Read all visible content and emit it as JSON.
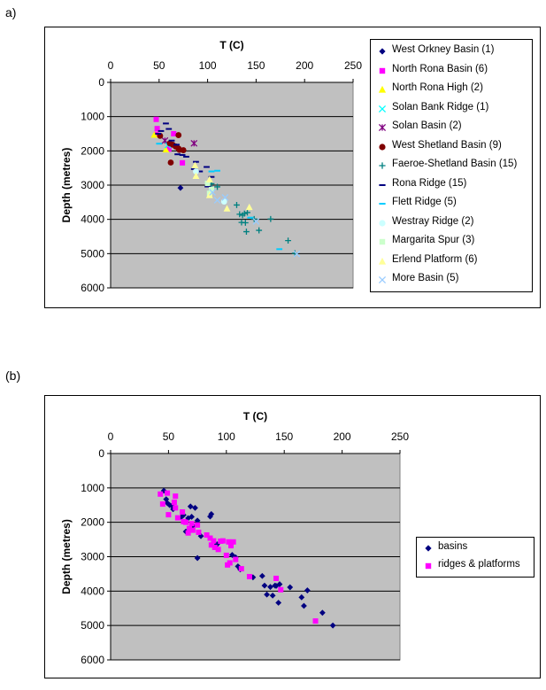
{
  "panels": {
    "a_label": "a)",
    "b_label": "(b)"
  },
  "chart_data": [
    {
      "type": "scatter",
      "panel": "a)",
      "xlabel": "T (C)",
      "ylabel": "Depth (metres)",
      "xlim": [
        0,
        250
      ],
      "ylim": [
        0,
        6000
      ],
      "x_ticks": [
        "0",
        "50",
        "100",
        "150",
        "200",
        "250"
      ],
      "y_ticks": [
        "0",
        "1000",
        "2000",
        "3000",
        "4000",
        "5000",
        "6000"
      ],
      "y_inverted": true,
      "x_axis_position": "top",
      "grid": "horizontal",
      "legend_position": "right",
      "plot_background": "#c0c0c0",
      "series": [
        {
          "name": "West Orkney Basin (1)",
          "color": "#000080",
          "marker": "diamond",
          "points": [
            [
              72,
              3080
            ]
          ]
        },
        {
          "name": "North Rona Basin (6)",
          "color": "#ff00ff",
          "marker": "square",
          "points": [
            [
              47,
              1080
            ],
            [
              48,
              1350
            ],
            [
              47,
              1520
            ],
            [
              65,
              1500
            ],
            [
              60,
              1950
            ],
            [
              74,
              2350
            ]
          ]
        },
        {
          "name": "North Rona High (2)",
          "color": "#ffff00",
          "marker": "triangle",
          "points": [
            [
              45,
              1530
            ],
            [
              57,
              1960
            ]
          ]
        },
        {
          "name": "Solan Bank Ridge (1)",
          "color": "#00ffff",
          "marker": "x",
          "points": [
            [
              59,
              1830
            ]
          ]
        },
        {
          "name": "Solan Basin (2)",
          "color": "#800080",
          "marker": "star",
          "points": [
            [
              86,
              1780
            ],
            [
              56,
              1700
            ]
          ]
        },
        {
          "name": "West Shetland Basin (9)",
          "color": "#800000",
          "marker": "circle",
          "points": [
            [
              51,
              1560
            ],
            [
              61,
              1780
            ],
            [
              64,
              1820
            ],
            [
              67,
              1870
            ],
            [
              70,
              1930
            ],
            [
              70,
              1540
            ],
            [
              71,
              1970
            ],
            [
              62,
              2340
            ],
            [
              75,
              1980
            ]
          ]
        },
        {
          "name": "Faeroe-Shetland Basin (15)",
          "color": "#008080",
          "marker": "plus",
          "points": [
            [
              104,
              2960
            ],
            [
              110,
              3050
            ],
            [
              130,
              3580
            ],
            [
              133,
              3850
            ],
            [
              135,
              4090
            ],
            [
              136,
              3880
            ],
            [
              138,
              3830
            ],
            [
              139,
              4100
            ],
            [
              141,
              3800
            ],
            [
              140,
              4360
            ],
            [
              148,
              3990
            ],
            [
              153,
              4320
            ],
            [
              165,
              3990
            ],
            [
              183,
              4620
            ],
            [
              190,
              4990
            ]
          ]
        },
        {
          "name": "Rona Ridge (15)",
          "color": "#000080",
          "marker": "dash",
          "points": [
            [
              49,
              1500
            ],
            [
              52,
              1420
            ],
            [
              57,
              1200
            ],
            [
              60,
              1360
            ],
            [
              63,
              1700
            ],
            [
              68,
              1820
            ],
            [
              69,
              2100
            ],
            [
              74,
              2120
            ],
            [
              78,
              2170
            ],
            [
              86,
              2530
            ],
            [
              88,
              2320
            ],
            [
              92,
              2600
            ],
            [
              99,
              2470
            ],
            [
              104,
              2760
            ],
            [
              100,
              3040
            ]
          ]
        },
        {
          "name": "Flett Ridge (5)",
          "color": "#00ccff",
          "marker": "dash",
          "points": [
            [
              50,
              1790
            ],
            [
              104,
              2600
            ],
            [
              110,
              2580
            ],
            [
              144,
              3950
            ],
            [
              174,
              4870
            ]
          ]
        },
        {
          "name": "Westray Ridge (2)",
          "color": "#ccffff",
          "marker": "circle",
          "points": [
            [
              88,
              2600
            ],
            [
              117,
              3480
            ]
          ]
        },
        {
          "name": "Margarita Spur (3)",
          "color": "#ccffcc",
          "marker": "square",
          "points": [
            [
              100,
              2950
            ],
            [
              104,
              3130
            ],
            [
              102,
              3240
            ]
          ]
        },
        {
          "name": "Erlend Platform (6)",
          "color": "#ffff99",
          "marker": "triangle",
          "points": [
            [
              87,
              2420
            ],
            [
              88,
              2730
            ],
            [
              102,
              2830
            ],
            [
              102,
              3290
            ],
            [
              120,
              3680
            ],
            [
              143,
              3640
            ]
          ]
        },
        {
          "name": "More Basin (5)",
          "color": "#99ccff",
          "marker": "x",
          "points": [
            [
              105,
              3210
            ],
            [
              110,
              3440
            ],
            [
              118,
              3360
            ],
            [
              150,
              4060
            ],
            [
              192,
              5010
            ]
          ]
        }
      ]
    },
    {
      "type": "scatter",
      "panel": "(b)",
      "xlabel": "T (C)",
      "ylabel": "Depth (metres)",
      "xlim": [
        0,
        250
      ],
      "ylim": [
        0,
        6000
      ],
      "x_ticks": [
        "0",
        "50",
        "100",
        "150",
        "200",
        "250"
      ],
      "y_ticks": [
        "0",
        "1000",
        "2000",
        "3000",
        "4000",
        "5000",
        "6000"
      ],
      "y_inverted": true,
      "x_axis_position": "top",
      "grid": "horizontal",
      "legend_position": "right",
      "plot_background": "#c0c0c0",
      "series": [
        {
          "name": "basins",
          "color": "#000080",
          "marker": "diamond",
          "points": [
            [
              46,
              1080
            ],
            [
              48,
              1330
            ],
            [
              49,
              1440
            ],
            [
              51,
              1500
            ],
            [
              53,
              1520
            ],
            [
              54,
              1620
            ],
            [
              61,
              1850
            ],
            [
              63,
              1790
            ],
            [
              65,
              2270
            ],
            [
              67,
              1880
            ],
            [
              69,
              1540
            ],
            [
              70,
              1840
            ],
            [
              71,
              2100
            ],
            [
              73,
              1580
            ],
            [
              75,
              1950
            ],
            [
              75,
              3040
            ],
            [
              78,
              2400
            ],
            [
              86,
              1830
            ],
            [
              87,
              1760
            ],
            [
              92,
              2640
            ],
            [
              105,
              2950
            ],
            [
              108,
              3020
            ],
            [
              110,
              3280
            ],
            [
              112,
              3370
            ],
            [
              123,
              3600
            ],
            [
              131,
              3560
            ],
            [
              133,
              3840
            ],
            [
              135,
              4100
            ],
            [
              138,
              3880
            ],
            [
              140,
              4130
            ],
            [
              142,
              3840
            ],
            [
              143,
              3850
            ],
            [
              145,
              4340
            ],
            [
              146,
              3800
            ],
            [
              155,
              3890
            ],
            [
              165,
              4180
            ],
            [
              167,
              4430
            ],
            [
              170,
              3980
            ],
            [
              183,
              4630
            ],
            [
              192,
              5000
            ]
          ]
        },
        {
          "name": "ridges & platforms",
          "color": "#ff00ff",
          "marker": "square",
          "points": [
            [
              43,
              1180
            ],
            [
              45,
              1470
            ],
            [
              49,
              1150
            ],
            [
              50,
              1780
            ],
            [
              55,
              1420
            ],
            [
              56,
              1580
            ],
            [
              56,
              1240
            ],
            [
              58,
              1870
            ],
            [
              62,
              1700
            ],
            [
              63,
              1980
            ],
            [
              65,
              2000
            ],
            [
              67,
              2310
            ],
            [
              68,
              2180
            ],
            [
              70,
              2040
            ],
            [
              71,
              2230
            ],
            [
              75,
              2080
            ],
            [
              76,
              2290
            ],
            [
              83,
              2370
            ],
            [
              86,
              2460
            ],
            [
              87,
              2660
            ],
            [
              89,
              2540
            ],
            [
              90,
              2730
            ],
            [
              93,
              2790
            ],
            [
              95,
              2550
            ],
            [
              97,
              2540
            ],
            [
              100,
              2960
            ],
            [
              101,
              3240
            ],
            [
              102,
              2570
            ],
            [
              103,
              3180
            ],
            [
              104,
              2680
            ],
            [
              106,
              2570
            ],
            [
              108,
              3080
            ],
            [
              113,
              3350
            ],
            [
              120,
              3580
            ],
            [
              143,
              3630
            ],
            [
              147,
              3960
            ],
            [
              177,
              4870
            ]
          ]
        }
      ]
    }
  ]
}
